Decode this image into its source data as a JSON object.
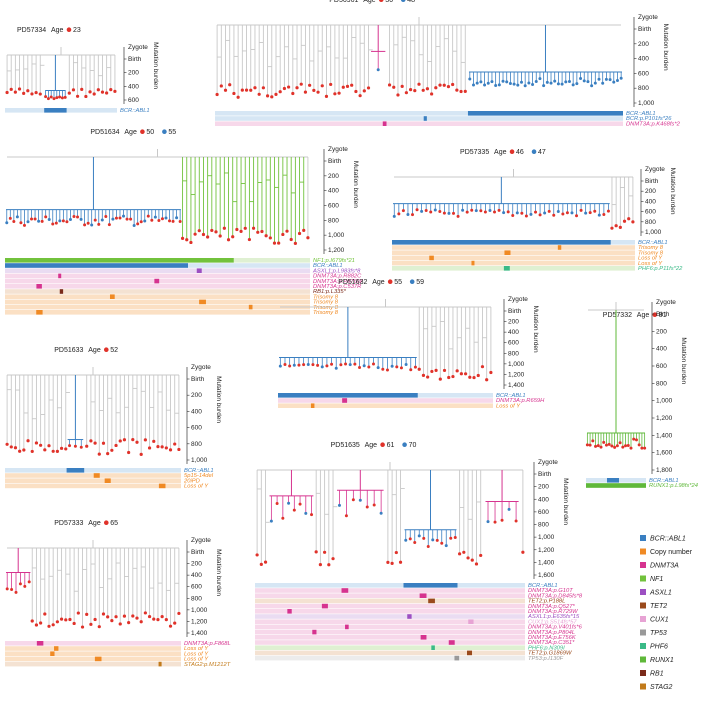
{
  "chart_data": {
    "type": "phylogenetic-tree-panel",
    "y_axis_labels": {
      "top1": "Zygote",
      "top2": "Birth",
      "title": "Mutation burden"
    },
    "colors": {
      "BCR::ABL1": "#3a7fc1",
      "Copy number": "#f08a24",
      "DNMT3A": "#d6338f",
      "NF1": "#72c23c",
      "ASXL1": "#9c4fc2",
      "TET2": "#9a4a1c",
      "CUX1": "#e7a3d4",
      "TP53": "#999999",
      "PHF6": "#3aba87",
      "RUNX1": "#5fb83a",
      "RB1": "#7a2a1a",
      "STAG2": "#c27a1a",
      "normal_branch": "#c8c8c8",
      "age1_dot": "#e0322a",
      "age2_dot": "#3a7fc1"
    },
    "legend": [
      {
        "label": "BCR::ABL1",
        "color": "#3a7fc1"
      },
      {
        "label": "Copy number",
        "color": "#f08a24"
      },
      {
        "label": "DNMT3A",
        "color": "#d6338f"
      },
      {
        "label": "NF1",
        "color": "#72c23c"
      },
      {
        "label": "ASXL1",
        "color": "#9c4fc2"
      },
      {
        "label": "TET2",
        "color": "#9a4a1c"
      },
      {
        "label": "CUX1",
        "color": "#e7a3d4"
      },
      {
        "label": "TP53",
        "color": "#999999"
      },
      {
        "label": "PHF6",
        "color": "#3aba87"
      },
      {
        "label": "RUNX1",
        "color": "#5fb83a"
      },
      {
        "label": "RB1",
        "color": "#7a2a1a"
      },
      {
        "label": "STAG2",
        "color": "#c27a1a"
      }
    ],
    "panels": [
      {
        "id": "PD57334",
        "age_label": "Age",
        "ages": [
          {
            "value": 23,
            "color": "#e0322a"
          }
        ],
        "yticks": [
          "200",
          "400",
          "600"
        ],
        "ymax": 600,
        "tracks": [
          {
            "label": "BCR::ABL1",
            "color": "#3a7fc1"
          }
        ]
      },
      {
        "id": "PD56961",
        "age_label": "Age",
        "ages": [
          {
            "value": 36,
            "color": "#e0322a"
          },
          {
            "value": 48,
            "color": "#3a7fc1"
          }
        ],
        "yticks": [
          "200",
          "400",
          "600",
          "800",
          "1,000"
        ],
        "ymax": 1000,
        "tracks": [
          {
            "label": "BCR::ABL1",
            "color": "#3a7fc1"
          },
          {
            "label": "BCR:p.P101fs*26",
            "color": "#3a7fc1"
          },
          {
            "label": "DNMT3A:p.K468fs*2",
            "color": "#d6338f"
          }
        ]
      },
      {
        "id": "PD51634",
        "age_label": "Age",
        "ages": [
          {
            "value": 50,
            "color": "#e0322a"
          },
          {
            "value": 55,
            "color": "#3a7fc1"
          }
        ],
        "yticks": [
          "200",
          "400",
          "600",
          "800",
          "1,000",
          "1,200"
        ],
        "ymax": 1200,
        "tracks": [
          {
            "label": "NF1:p.I679fs*21",
            "color": "#72c23c"
          },
          {
            "label": "BCR::ABL1",
            "color": "#3a7fc1"
          },
          {
            "label": "ASXL1:p.L983fs*8",
            "color": "#9c4fc2"
          },
          {
            "label": "DNMT3A:p.R882C",
            "color": "#d6338f"
          },
          {
            "label": "DNMT3A:p.P876W",
            "color": "#d6338f"
          },
          {
            "label": "DNMT3A:p.C537R",
            "color": "#d6338f"
          },
          {
            "label": "RB1:p.L335*",
            "color": "#7a2a1a"
          },
          {
            "label": "Trisomy 8",
            "color": "#f08a24"
          },
          {
            "label": "Trisomy 8",
            "color": "#f08a24"
          },
          {
            "label": "Trisomy 8",
            "color": "#f08a24"
          },
          {
            "label": "Trisomy 8",
            "color": "#f08a24"
          }
        ]
      },
      {
        "id": "PD57335",
        "age_label": "Age",
        "ages": [
          {
            "value": 46,
            "color": "#e0322a"
          },
          {
            "value": 47,
            "color": "#3a7fc1"
          }
        ],
        "yticks": [
          "200",
          "400",
          "600",
          "800",
          "1,000"
        ],
        "ymax": 1000,
        "tracks": [
          {
            "label": "BCR::ABL1",
            "color": "#3a7fc1"
          },
          {
            "label": "Trisomy 8",
            "color": "#f08a24"
          },
          {
            "label": "Trisomy 8",
            "color": "#f08a24"
          },
          {
            "label": "Loss of Y",
            "color": "#f08a24"
          },
          {
            "label": "Loss of Y",
            "color": "#f08a24"
          },
          {
            "label": "PHF6:p.P11fs*22",
            "color": "#3aba87"
          }
        ]
      },
      {
        "id": "PD51633",
        "age_label": "Age",
        "ages": [
          {
            "value": 52,
            "color": "#e0322a"
          }
        ],
        "yticks": [
          "200",
          "400",
          "600",
          "800",
          "1,000"
        ],
        "ymax": 1000,
        "tracks": [
          {
            "label": "BCR::ABL1",
            "color": "#3a7fc1"
          },
          {
            "label": "5p15-14del",
            "color": "#f08a24"
          },
          {
            "label": "20iPD",
            "color": "#f08a24"
          },
          {
            "label": "Loss of Y",
            "color": "#f08a24"
          }
        ]
      },
      {
        "id": "PD51632",
        "age_label": "Age",
        "ages": [
          {
            "value": 55,
            "color": "#e0322a"
          },
          {
            "value": 59,
            "color": "#3a7fc1"
          }
        ],
        "yticks": [
          "200",
          "400",
          "600",
          "800",
          "1,000",
          "1,200",
          "1,400"
        ],
        "ymax": 1400,
        "tracks": [
          {
            "label": "BCR::ABL1",
            "color": "#3a7fc1"
          },
          {
            "label": "DNMT3A:p.R659H",
            "color": "#d6338f"
          },
          {
            "label": "Loss of Y",
            "color": "#f08a24"
          }
        ]
      },
      {
        "id": "PD57332",
        "age_label": "Age",
        "ages": [
          {
            "value": 81,
            "color": "#e0322a"
          }
        ],
        "yticks": [
          "200",
          "400",
          "600",
          "800",
          "1,000",
          "1,200",
          "1,400",
          "1,600",
          "1,800"
        ],
        "ymax": 1800,
        "tracks": [
          {
            "label": "BCR::ABL1",
            "color": "#3a7fc1"
          },
          {
            "label": "RUNX1:p.L98fs*24",
            "color": "#5fb83a"
          }
        ]
      },
      {
        "id": "PD51635",
        "age_label": "Age",
        "ages": [
          {
            "value": 61,
            "color": "#e0322a"
          },
          {
            "value": 70,
            "color": "#3a7fc1"
          }
        ],
        "yticks": [
          "200",
          "400",
          "600",
          "800",
          "1,000",
          "1,200",
          "1,400",
          "1,600"
        ],
        "ymax": 1600,
        "tracks": [
          {
            "label": "BCR::ABL1",
            "color": "#3a7fc1"
          },
          {
            "label": "DNMT3A:p.G10T",
            "color": "#d6338f"
          },
          {
            "label": "DNMT3A:p.D845fs*8",
            "color": "#d6338f"
          },
          {
            "label": "TET2:p.P188L",
            "color": "#9a4a1c"
          },
          {
            "label": "DNMT3A:p.Q527*",
            "color": "#d6338f"
          },
          {
            "label": "DNMT3A:p.R729W",
            "color": "#d6338f"
          },
          {
            "label": "ASXL1:p.E635fs*15",
            "color": "#9c4fc2"
          },
          {
            "label": "CUX1:p.S514fs*57",
            "color": "#e7a3d4"
          },
          {
            "label": "DNMT3A:p.V401fs*6",
            "color": "#d6338f"
          },
          {
            "label": "DNMT3A:p.P804L",
            "color": "#d6338f"
          },
          {
            "label": "DNMT3A:p.E756K",
            "color": "#d6338f"
          },
          {
            "label": "DNMT3A:p.C351*",
            "color": "#d6338f"
          },
          {
            "label": "PHF6:p.N309I",
            "color": "#3aba87"
          },
          {
            "label": "TET2:p.G1869W",
            "color": "#9a4a1c"
          },
          {
            "label": "TP53:p.I130F",
            "color": "#999999"
          }
        ]
      },
      {
        "id": "PD57333",
        "age_label": "Age",
        "ages": [
          {
            "value": 65,
            "color": "#e0322a"
          }
        ],
        "yticks": [
          "200",
          "400",
          "600",
          "800",
          "1,000",
          "1,200",
          "1,400"
        ],
        "ymax": 1400,
        "tracks": [
          {
            "label": "DNMT3A:p.F868L",
            "color": "#d6338f"
          },
          {
            "label": "Loss of Y",
            "color": "#f08a24"
          },
          {
            "label": "Loss of Y",
            "color": "#f08a24"
          },
          {
            "label": "Loss of Y",
            "color": "#f08a24"
          },
          {
            "label": "STAG2:p.M1212T",
            "color": "#c27a1a"
          }
        ]
      }
    ]
  }
}
